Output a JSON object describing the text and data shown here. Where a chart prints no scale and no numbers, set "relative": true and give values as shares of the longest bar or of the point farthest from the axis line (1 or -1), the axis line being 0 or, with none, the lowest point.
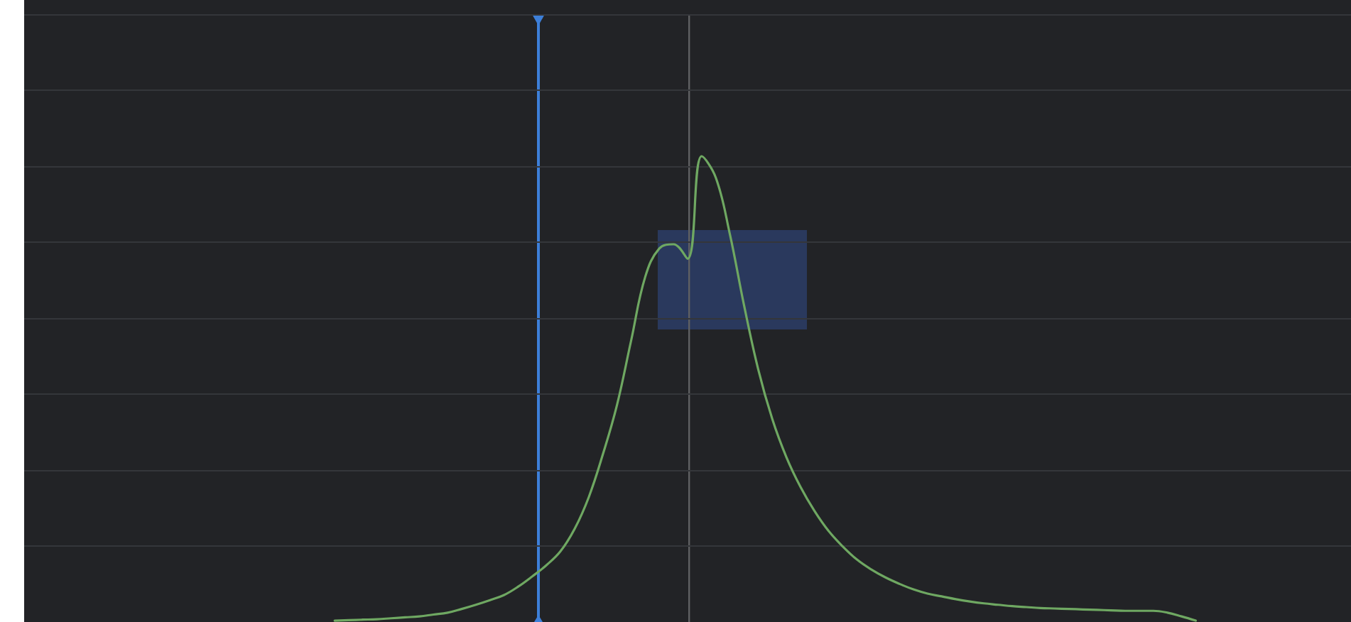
{
  "chart_data": {
    "type": "line",
    "relative": true,
    "grid": "y",
    "marker": "none",
    "line_style": "solid",
    "categories": [
      null,
      null,
      null,
      null,
      null,
      null,
      null,
      null,
      null,
      null,
      null,
      null,
      null,
      null,
      null,
      null,
      null,
      null,
      null,
      null,
      null,
      null,
      null,
      null,
      null,
      null,
      null,
      null,
      null,
      null,
      null,
      null,
      null,
      null,
      null,
      null,
      null,
      null,
      null,
      null,
      null,
      null,
      null,
      null,
      null,
      null,
      null,
      null,
      null,
      null,
      null,
      null,
      null,
      null,
      null,
      null,
      null,
      null,
      null,
      null,
      null,
      null,
      null,
      null,
      null,
      null,
      null,
      null,
      null,
      null,
      null,
      null,
      null,
      null,
      null,
      null,
      null,
      null,
      null,
      null,
      null,
      null,
      null,
      null,
      null,
      null,
      null,
      null,
      null,
      null,
      null,
      null,
      null,
      null,
      null
    ],
    "series": [
      {
        "color": "#6fa862",
        "values": [
          null,
          null,
          null,
          null,
          null,
          null,
          null,
          null,
          null,
          null,
          null,
          null,
          null,
          null,
          null,
          null,
          null,
          null,
          null,
          null,
          null,
          null,
          0.003,
          0.004,
          0.005,
          0.006,
          0.008,
          0.01,
          0.012,
          0.016,
          0.02,
          0.028,
          0.037,
          0.047,
          0.058,
          0.076,
          0.098,
          0.122,
          0.152,
          0.2,
          0.268,
          0.36,
          0.466,
          0.604,
          0.741,
          0.802,
          0.811,
          0.78,
          1,
          0.954,
          0.832,
          0.68,
          0.543,
          0.436,
          0.354,
          0.29,
          0.238,
          0.195,
          0.162,
          0.134,
          0.113,
          0.096,
          0.082,
          0.07,
          0.061,
          0.055,
          0.049,
          0.044,
          0.04,
          0.037,
          0.034,
          0.032,
          0.03,
          0.029,
          0.028,
          0.027,
          0.026,
          0.025,
          0.024,
          0.024,
          0.024,
          0.02,
          0.012,
          0.003,
          null,
          null,
          null,
          null,
          null,
          null,
          null,
          null,
          null,
          null,
          null
        ]
      }
    ]
  }
}
